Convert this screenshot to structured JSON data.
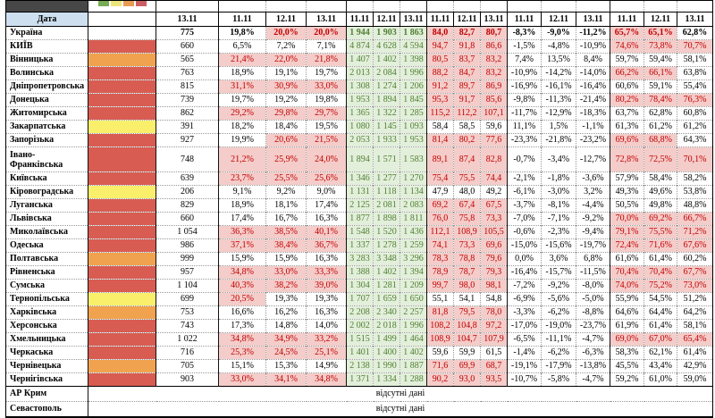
{
  "header": {
    "date_label": "Дата",
    "dates": [
      "13.11",
      "11.11",
      "12.11",
      "13.11",
      "11.11",
      "12.11",
      "13.11",
      "11.11",
      "12.11",
      "13.11",
      "11.11",
      "12.11",
      "13.11",
      "11.11",
      "12.11",
      "13.11"
    ],
    "legend_colors": [
      "#76AC53",
      "#EBE57C",
      "#E89A52",
      "#CB5E62"
    ]
  },
  "labels": {
    "no_data": "відсутні дані"
  },
  "status_colors": {
    "none": "#FFFFFF",
    "red": "#D85C52",
    "orange": "#F0A24E",
    "yellow": "#F9EF6A"
  },
  "value_colors": {
    "highlight_bg": "#F4CCC9",
    "highlight_text": "#C00000",
    "green_bg": "#E2EFDA",
    "green_text": "#507E32",
    "header_bg": "#CEE0F0"
  },
  "table": {
    "rows": [
      {
        "region": "Україна",
        "status": "none",
        "bold": true,
        "count": "775",
        "pct1": [
          "19,8%",
          "20,0%",
          "20,0%"
        ],
        "pct1_hl": [
          0,
          1,
          1
        ],
        "abs": [
          "1 944",
          "1 903",
          "1 863"
        ],
        "load": [
          "84,0",
          "82,7",
          "80,7"
        ],
        "load_hl": [
          1,
          1,
          1
        ],
        "delta": [
          "-8,3%",
          "-9,0%",
          "-11,2%"
        ],
        "pct2": [
          "65,7%",
          "65,1%",
          "62,8%"
        ],
        "pct2_hl": [
          1,
          1,
          0
        ]
      },
      {
        "region": "КИЇВ",
        "status": "red",
        "count": "660",
        "pct1": [
          "6,5%",
          "7,2%",
          "7,1%"
        ],
        "pct1_hl": [
          0,
          0,
          0
        ],
        "abs": [
          "4 874",
          "4 628",
          "4 594"
        ],
        "load": [
          "94,7",
          "91,8",
          "86,6"
        ],
        "load_hl": [
          1,
          1,
          1
        ],
        "delta": [
          "-1,5%",
          "-4,8%",
          "-10,9%"
        ],
        "pct2": [
          "74,6%",
          "73,8%",
          "70,7%"
        ],
        "pct2_hl": [
          1,
          1,
          1
        ]
      },
      {
        "region": "Вінницька",
        "status": "orange",
        "count": "565",
        "pct1": [
          "21,4%",
          "22,0%",
          "21,8%"
        ],
        "pct1_hl": [
          1,
          1,
          1
        ],
        "abs": [
          "1 407",
          "1 402",
          "1 398"
        ],
        "load": [
          "80,5",
          "83,7",
          "83,2"
        ],
        "load_hl": [
          1,
          1,
          1
        ],
        "delta": [
          "7,4%",
          "13,5%",
          "8,4%"
        ],
        "pct2": [
          "59,7%",
          "59,4%",
          "58,1%"
        ],
        "pct2_hl": [
          0,
          0,
          0
        ]
      },
      {
        "region": "Волинська",
        "status": "red",
        "count": "763",
        "pct1": [
          "18,9%",
          "19,1%",
          "19,7%"
        ],
        "pct1_hl": [
          0,
          0,
          0
        ],
        "abs": [
          "2 013",
          "2 084",
          "1 996"
        ],
        "load": [
          "88,2",
          "84,7",
          "83,2"
        ],
        "load_hl": [
          1,
          1,
          1
        ],
        "delta": [
          "-10,9%",
          "-14,2%",
          "-14,0%"
        ],
        "pct2": [
          "66,2%",
          "66,1%",
          "63,8%"
        ],
        "pct2_hl": [
          1,
          1,
          0
        ]
      },
      {
        "region": "Дніпропетровська",
        "status": "red",
        "count": "815",
        "pct1": [
          "31,1%",
          "30,9%",
          "33,0%"
        ],
        "pct1_hl": [
          1,
          1,
          1
        ],
        "abs": [
          "1 308",
          "1 274",
          "1 206"
        ],
        "load": [
          "91,2",
          "89,7",
          "86,9"
        ],
        "load_hl": [
          1,
          1,
          1
        ],
        "delta": [
          "-16,9%",
          "-16,1%",
          "-16,4%"
        ],
        "pct2": [
          "60,6%",
          "59,1%",
          "55,4%"
        ],
        "pct2_hl": [
          0,
          0,
          0
        ]
      },
      {
        "region": "Донецька",
        "status": "red",
        "count": "739",
        "pct1": [
          "19,7%",
          "19,2%",
          "19,8%"
        ],
        "pct1_hl": [
          0,
          0,
          0
        ],
        "abs": [
          "1 953",
          "1 894",
          "1 845"
        ],
        "load": [
          "95,3",
          "91,7",
          "85,6"
        ],
        "load_hl": [
          1,
          1,
          1
        ],
        "delta": [
          "-9,8%",
          "-11,3%",
          "-21,4%"
        ],
        "pct2": [
          "80,2%",
          "78,4%",
          "76,3%"
        ],
        "pct2_hl": [
          1,
          1,
          1
        ]
      },
      {
        "region": "Житомирська",
        "status": "red",
        "count": "862",
        "pct1": [
          "29,2%",
          "29,8%",
          "29,7%"
        ],
        "pct1_hl": [
          1,
          1,
          1
        ],
        "abs": [
          "1 365",
          "1 322",
          "1 285"
        ],
        "load": [
          "115,2",
          "112,2",
          "107,1"
        ],
        "load_hl": [
          1,
          1,
          1
        ],
        "delta": [
          "-11,7%",
          "-12,9%",
          "-18,3%"
        ],
        "pct2": [
          "63,7%",
          "62,8%",
          "60,8%"
        ],
        "pct2_hl": [
          0,
          0,
          0
        ]
      },
      {
        "region": "Закарпатська",
        "status": "yellow",
        "count": "391",
        "pct1": [
          "18,2%",
          "18,4%",
          "19,5%"
        ],
        "pct1_hl": [
          0,
          0,
          0
        ],
        "abs": [
          "1 080",
          "1 145",
          "1 093"
        ],
        "load": [
          "58,4",
          "58,5",
          "59,6"
        ],
        "load_hl": [
          0,
          0,
          0
        ],
        "delta": [
          "11,1%",
          "1,5%",
          "-1,1%"
        ],
        "pct2": [
          "61,3%",
          "61,2%",
          "61,2%"
        ],
        "pct2_hl": [
          0,
          0,
          0
        ]
      },
      {
        "region": "Запорізька",
        "status": "red",
        "count": "927",
        "pct1": [
          "19,9%",
          "20,6%",
          "21,5%"
        ],
        "pct1_hl": [
          0,
          1,
          1
        ],
        "abs": [
          "2 053",
          "1 933",
          "1 953"
        ],
        "load": [
          "81,4",
          "80,2",
          "77,6"
        ],
        "load_hl": [
          1,
          1,
          1
        ],
        "delta": [
          "-23,3%",
          "-21,8%",
          "-23,2%"
        ],
        "pct2": [
          "69,6%",
          "68,8%",
          "64,3%"
        ],
        "pct2_hl": [
          1,
          1,
          0
        ]
      },
      {
        "region": "Івано-Франківська",
        "status": "red",
        "tall": true,
        "count": "748",
        "pct1": [
          "21,2%",
          "25,9%",
          "24,0%"
        ],
        "pct1_hl": [
          1,
          1,
          1
        ],
        "abs": [
          "1 894",
          "1 571",
          "1 583"
        ],
        "load": [
          "89,1",
          "87,4",
          "82,8"
        ],
        "load_hl": [
          1,
          1,
          1
        ],
        "delta": [
          "-0,7%",
          "-3,4%",
          "-12,7%"
        ],
        "pct2": [
          "72,8%",
          "72,5%",
          "70,1%"
        ],
        "pct2_hl": [
          1,
          1,
          1
        ]
      },
      {
        "region": "Київська",
        "status": "red",
        "count": "639",
        "pct1": [
          "23,7%",
          "25,5%",
          "25,6%"
        ],
        "pct1_hl": [
          1,
          1,
          1
        ],
        "abs": [
          "1 346",
          "1 277",
          "1 270"
        ],
        "load": [
          "75,4",
          "75,5",
          "74,4"
        ],
        "load_hl": [
          1,
          1,
          1
        ],
        "delta": [
          "-2,1%",
          "-1,8%",
          "-3,6%"
        ],
        "pct2": [
          "57,9%",
          "58,4%",
          "58,2%"
        ],
        "pct2_hl": [
          0,
          0,
          0
        ]
      },
      {
        "region": "Кіровоградська",
        "status": "yellow",
        "count": "206",
        "pct1": [
          "9,1%",
          "9,2%",
          "9,0%"
        ],
        "pct1_hl": [
          0,
          0,
          0
        ],
        "abs": [
          "1 131",
          "1 118",
          "1 134"
        ],
        "load": [
          "47,9",
          "48,0",
          "49,2"
        ],
        "load_hl": [
          0,
          0,
          0
        ],
        "delta": [
          "-6,1%",
          "-3,0%",
          "3,2%"
        ],
        "pct2": [
          "49,3%",
          "49,6%",
          "53,8%"
        ],
        "pct2_hl": [
          0,
          0,
          0
        ]
      },
      {
        "region": "Луганська",
        "status": "red",
        "count": "829",
        "pct1": [
          "18,9%",
          "18,1%",
          "17,4%"
        ],
        "pct1_hl": [
          0,
          0,
          0
        ],
        "abs": [
          "2 125",
          "2 081",
          "2 083"
        ],
        "load": [
          "69,2",
          "67,4",
          "67,5"
        ],
        "load_hl": [
          1,
          1,
          1
        ],
        "delta": [
          "-3,7%",
          "-8,1%",
          "-4,4%"
        ],
        "pct2": [
          "50,5%",
          "49,8%",
          "48,8%"
        ],
        "pct2_hl": [
          0,
          0,
          0
        ]
      },
      {
        "region": "Львівська",
        "status": "red",
        "count": "660",
        "pct1": [
          "17,4%",
          "16,7%",
          "16,3%"
        ],
        "pct1_hl": [
          0,
          0,
          0
        ],
        "abs": [
          "1 877",
          "1 898",
          "1 811"
        ],
        "load": [
          "76,0",
          "75,8",
          "73,3"
        ],
        "load_hl": [
          1,
          1,
          1
        ],
        "delta": [
          "-7,0%",
          "-7,1%",
          "-9,2%"
        ],
        "pct2": [
          "70,0%",
          "69,2%",
          "66,7%"
        ],
        "pct2_hl": [
          1,
          1,
          1
        ]
      },
      {
        "region": "Миколаївська",
        "status": "red",
        "count": "1 054",
        "pct1": [
          "36,3%",
          "38,5%",
          "40,1%"
        ],
        "pct1_hl": [
          1,
          1,
          1
        ],
        "abs": [
          "1 548",
          "1 520",
          "1 436"
        ],
        "load": [
          "112,1",
          "108,9",
          "105,5"
        ],
        "load_hl": [
          1,
          1,
          1
        ],
        "delta": [
          "-0,6%",
          "-2,3%",
          "-9,4%"
        ],
        "pct2": [
          "79,1%",
          "75,5%",
          "71,2%"
        ],
        "pct2_hl": [
          1,
          1,
          1
        ]
      },
      {
        "region": "Одеська",
        "status": "red",
        "count": "986",
        "pct1": [
          "37,1%",
          "38,4%",
          "36,7%"
        ],
        "pct1_hl": [
          1,
          1,
          1
        ],
        "abs": [
          "1 337",
          "1 278",
          "1 259"
        ],
        "load": [
          "74,1",
          "73,3",
          "69,6"
        ],
        "load_hl": [
          1,
          1,
          1
        ],
        "delta": [
          "-15,0%",
          "-15,6%",
          "-19,7%"
        ],
        "pct2": [
          "72,4%",
          "71,6%",
          "67,6%"
        ],
        "pct2_hl": [
          1,
          1,
          1
        ]
      },
      {
        "region": "Полтавська",
        "status": "orange",
        "count": "999",
        "pct1": [
          "15,9%",
          "15,9%",
          "16,3%"
        ],
        "pct1_hl": [
          0,
          0,
          0
        ],
        "abs": [
          "3 283",
          "3 348",
          "3 296"
        ],
        "load": [
          "78,3",
          "78,8",
          "79,6"
        ],
        "load_hl": [
          1,
          1,
          1
        ],
        "delta": [
          "0,0%",
          "3,6%",
          "6,8%"
        ],
        "pct2": [
          "61,6%",
          "61,4%",
          "60,2%"
        ],
        "pct2_hl": [
          0,
          0,
          0
        ]
      },
      {
        "region": "Рівненська",
        "status": "red",
        "count": "957",
        "pct1": [
          "34,8%",
          "33,0%",
          "33,3%"
        ],
        "pct1_hl": [
          1,
          1,
          1
        ],
        "abs": [
          "1 388",
          "1 402",
          "1 394"
        ],
        "load": [
          "78,9",
          "78,7",
          "79,3"
        ],
        "load_hl": [
          1,
          1,
          1
        ],
        "delta": [
          "-16,4%",
          "-15,7%",
          "-11,5%"
        ],
        "pct2": [
          "70,4%",
          "70,4%",
          "67,7%"
        ],
        "pct2_hl": [
          1,
          1,
          1
        ]
      },
      {
        "region": "Сумська",
        "status": "red",
        "count": "1 104",
        "pct1": [
          "40,3%",
          "38,2%",
          "39,0%"
        ],
        "pct1_hl": [
          1,
          1,
          1
        ],
        "abs": [
          "1 304",
          "1 281",
          "1 209"
        ],
        "load": [
          "99,7",
          "98,0",
          "98,1"
        ],
        "load_hl": [
          1,
          1,
          1
        ],
        "delta": [
          "-7,2%",
          "-9,2%",
          "-8,0%"
        ],
        "pct2": [
          "74,0%",
          "75,2%",
          "73,0%"
        ],
        "pct2_hl": [
          1,
          1,
          1
        ]
      },
      {
        "region": "Тернопільська",
        "status": "yellow",
        "count": "699",
        "pct1": [
          "20,5%",
          "19,3%",
          "19,3%"
        ],
        "pct1_hl": [
          1,
          0,
          0
        ],
        "abs": [
          "1 707",
          "1 659",
          "1 650"
        ],
        "load": [
          "55,1",
          "54,1",
          "54,8"
        ],
        "load_hl": [
          0,
          0,
          0
        ],
        "delta": [
          "-6,9%",
          "-5,6%",
          "-5,0%"
        ],
        "pct2": [
          "55,9%",
          "54,5%",
          "51,2%"
        ],
        "pct2_hl": [
          0,
          0,
          0
        ]
      },
      {
        "region": "Харківська",
        "status": "orange",
        "count": "753",
        "pct1": [
          "16,6%",
          "16,2%",
          "16,3%"
        ],
        "pct1_hl": [
          0,
          0,
          0
        ],
        "abs": [
          "2 208",
          "2 340",
          "2 257"
        ],
        "load": [
          "81,8",
          "79,5",
          "78,0"
        ],
        "load_hl": [
          1,
          1,
          1
        ],
        "delta": [
          "-3,3%",
          "-6,2%",
          "-8,8%"
        ],
        "pct2": [
          "64,6%",
          "64,4%",
          "64,2%"
        ],
        "pct2_hl": [
          0,
          0,
          0
        ]
      },
      {
        "region": "Херсонська",
        "status": "red",
        "count": "743",
        "pct1": [
          "17,3%",
          "14,8%",
          "14,0%"
        ],
        "pct1_hl": [
          0,
          0,
          0
        ],
        "abs": [
          "2 002",
          "2 018",
          "1 996"
        ],
        "load": [
          "108,2",
          "104,8",
          "97,2"
        ],
        "load_hl": [
          1,
          1,
          1
        ],
        "delta": [
          "-17,0%",
          "-19,0%",
          "-23,7%"
        ],
        "pct2": [
          "61,9%",
          "61,4%",
          "58,1%"
        ],
        "pct2_hl": [
          0,
          0,
          0
        ]
      },
      {
        "region": "Хмельницька",
        "status": "red",
        "count": "1 022",
        "pct1": [
          "34,8%",
          "34,9%",
          "33,2%"
        ],
        "pct1_hl": [
          1,
          1,
          1
        ],
        "abs": [
          "1 515",
          "1 499",
          "1 464"
        ],
        "load": [
          "108,9",
          "104,7",
          "107,9"
        ],
        "load_hl": [
          1,
          1,
          1
        ],
        "delta": [
          "-6,5%",
          "-11,1%",
          "-4,7%"
        ],
        "pct2": [
          "69,0%",
          "67,0%",
          "65,4%"
        ],
        "pct2_hl": [
          1,
          1,
          1
        ]
      },
      {
        "region": "Черкаська",
        "status": "red",
        "count": "716",
        "pct1": [
          "25,3%",
          "24,5%",
          "25,1%"
        ],
        "pct1_hl": [
          1,
          1,
          1
        ],
        "abs": [
          "1 401",
          "1 400",
          "1 402"
        ],
        "load": [
          "59,6",
          "59,9",
          "61,5"
        ],
        "load_hl": [
          0,
          0,
          0
        ],
        "delta": [
          "-1,4%",
          "-6,2%",
          "-6,3%"
        ],
        "pct2": [
          "58,3%",
          "62,1%",
          "61,4%"
        ],
        "pct2_hl": [
          0,
          0,
          0
        ]
      },
      {
        "region": "Чернівецька",
        "status": "orange",
        "count": "705",
        "pct1": [
          "15,1%",
          "15,3%",
          "14,9%"
        ],
        "pct1_hl": [
          0,
          0,
          0
        ],
        "abs": [
          "2 138",
          "1 990",
          "1 887"
        ],
        "load": [
          "71,6",
          "69,9",
          "68,7"
        ],
        "load_hl": [
          1,
          1,
          1
        ],
        "delta": [
          "-19,1%",
          "-17,9%",
          "-13,8%"
        ],
        "pct2": [
          "45,5%",
          "43,4%",
          "42,9%"
        ],
        "pct2_hl": [
          0,
          0,
          0
        ]
      },
      {
        "region": "Чернігівська",
        "status": "red",
        "count": "903",
        "pct1": [
          "33,0%",
          "34,1%",
          "34,8%"
        ],
        "pct1_hl": [
          1,
          1,
          1
        ],
        "abs": [
          "1 371",
          "1 334",
          "1 288"
        ],
        "load": [
          "90,2",
          "93,0",
          "93,5"
        ],
        "load_hl": [
          1,
          1,
          1
        ],
        "delta": [
          "-10,7%",
          "-5,8%",
          "-4,7%"
        ],
        "pct2": [
          "59,2%",
          "61,0%",
          "59,0%"
        ],
        "pct2_hl": [
          0,
          0,
          0
        ]
      },
      {
        "region": "АР Крим",
        "no_data": true
      },
      {
        "region": "Севастополь",
        "no_data": true
      }
    ]
  }
}
